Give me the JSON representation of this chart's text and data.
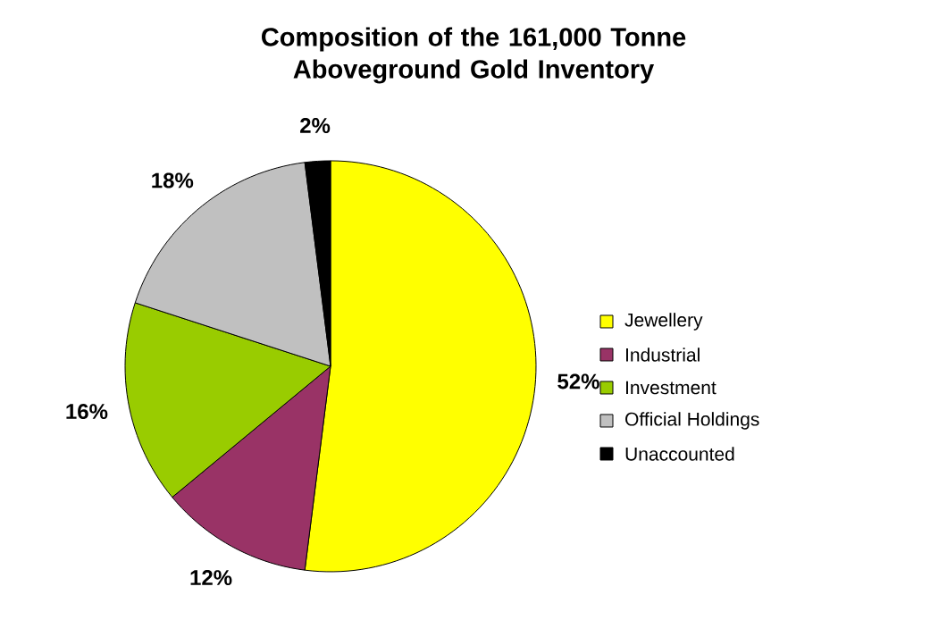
{
  "chart_data": {
    "type": "pie",
    "title": "Composition of the 161,000 Tonne Aboveground Gold Inventory",
    "categories": [
      "Jewellery",
      "Industrial",
      "Investment",
      "Official Holdings",
      "Unaccounted"
    ],
    "values": [
      52,
      12,
      16,
      18,
      2
    ],
    "value_labels": [
      "52%",
      "12%",
      "16%",
      "18%",
      "2%"
    ],
    "colors": [
      "#ffff00",
      "#993366",
      "#99cc00",
      "#c0c0c0",
      "#000000"
    ],
    "legend": "right"
  }
}
